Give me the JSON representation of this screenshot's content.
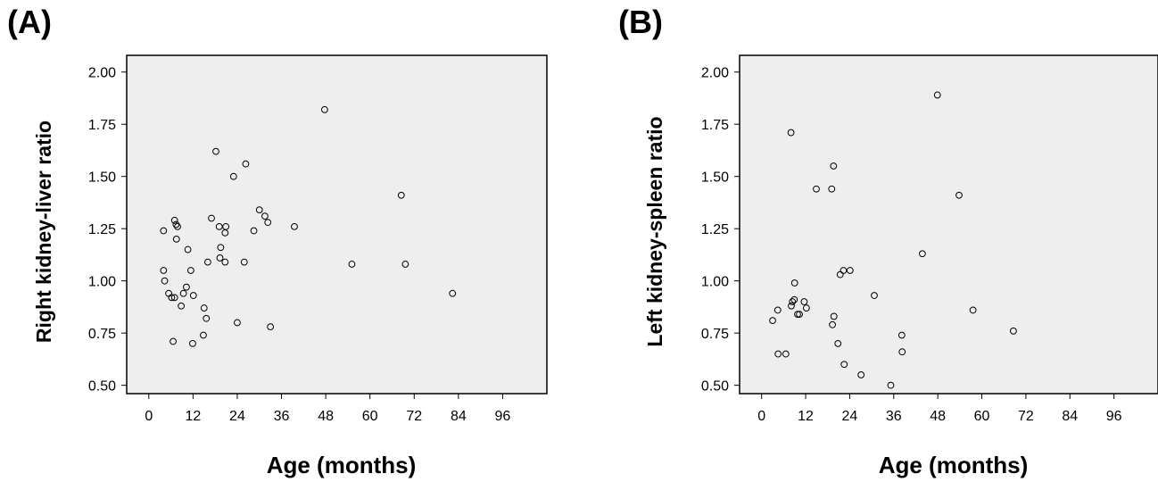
{
  "chart_data": [
    {
      "panel_label": "(A)",
      "type": "scatter",
      "xlabel": "Age (months)",
      "ylabel": "Right kidney-liver ratio",
      "xlim": [
        -6,
        108
      ],
      "ylim": [
        0.46,
        2.08
      ],
      "xticks": [
        0,
        12,
        24,
        36,
        48,
        60,
        72,
        84,
        96
      ],
      "yticks": [
        "0.50",
        "0.75",
        "1.00",
        "1.25",
        "1.50",
        "1.75",
        "2.00"
      ],
      "grid": false,
      "colors": {
        "background": "#eeeeee",
        "marker": "#000000"
      },
      "points": [
        {
          "x": 4,
          "y": 1.24
        },
        {
          "x": 4,
          "y": 1.05
        },
        {
          "x": 4.3,
          "y": 1.0
        },
        {
          "x": 5.4,
          "y": 0.94
        },
        {
          "x": 6.2,
          "y": 0.92
        },
        {
          "x": 6.6,
          "y": 0.71
        },
        {
          "x": 7,
          "y": 0.92
        },
        {
          "x": 7,
          "y": 1.29
        },
        {
          "x": 7.4,
          "y": 1.27
        },
        {
          "x": 7.5,
          "y": 1.2
        },
        {
          "x": 7.8,
          "y": 1.26
        },
        {
          "x": 8.8,
          "y": 0.88
        },
        {
          "x": 9.4,
          "y": 0.94
        },
        {
          "x": 10.2,
          "y": 0.97
        },
        {
          "x": 10.6,
          "y": 1.15
        },
        {
          "x": 11.4,
          "y": 1.05
        },
        {
          "x": 11.9,
          "y": 0.7
        },
        {
          "x": 12.1,
          "y": 0.93
        },
        {
          "x": 14.8,
          "y": 0.74
        },
        {
          "x": 15,
          "y": 0.87
        },
        {
          "x": 15.6,
          "y": 0.82
        },
        {
          "x": 16,
          "y": 1.09
        },
        {
          "x": 17,
          "y": 1.3
        },
        {
          "x": 18.2,
          "y": 1.62
        },
        {
          "x": 19.1,
          "y": 1.26
        },
        {
          "x": 19.3,
          "y": 1.11
        },
        {
          "x": 19.5,
          "y": 1.16
        },
        {
          "x": 20.7,
          "y": 1.09
        },
        {
          "x": 20.7,
          "y": 1.23
        },
        {
          "x": 20.9,
          "y": 1.26
        },
        {
          "x": 23,
          "y": 1.5
        },
        {
          "x": 24,
          "y": 0.8
        },
        {
          "x": 25.9,
          "y": 1.09
        },
        {
          "x": 26.3,
          "y": 1.56
        },
        {
          "x": 28.5,
          "y": 1.24
        },
        {
          "x": 30,
          "y": 1.34
        },
        {
          "x": 31.5,
          "y": 1.31
        },
        {
          "x": 32.3,
          "y": 1.28
        },
        {
          "x": 33,
          "y": 0.78
        },
        {
          "x": 39.5,
          "y": 1.26
        },
        {
          "x": 47.7,
          "y": 1.82
        },
        {
          "x": 55.1,
          "y": 1.08
        },
        {
          "x": 68.5,
          "y": 1.41
        },
        {
          "x": 69.6,
          "y": 1.08
        },
        {
          "x": 82.4,
          "y": 0.94
        }
      ]
    },
    {
      "panel_label": "(B)",
      "type": "scatter",
      "xlabel": "Age (months)",
      "ylabel": "Left kidney-spleen ratio",
      "xlim": [
        -6,
        108
      ],
      "ylim": [
        0.46,
        2.08
      ],
      "xticks": [
        0,
        12,
        24,
        36,
        48,
        60,
        72,
        84,
        96
      ],
      "yticks": [
        "0.50",
        "0.75",
        "1.00",
        "1.25",
        "1.50",
        "1.75",
        "2.00"
      ],
      "grid": false,
      "colors": {
        "background": "#eeeeee",
        "marker": "#000000"
      },
      "points": [
        {
          "x": 3,
          "y": 0.81
        },
        {
          "x": 4.4,
          "y": 0.86
        },
        {
          "x": 4.5,
          "y": 0.65
        },
        {
          "x": 6.6,
          "y": 0.65
        },
        {
          "x": 8,
          "y": 1.71
        },
        {
          "x": 8.1,
          "y": 0.88
        },
        {
          "x": 8.4,
          "y": 0.9
        },
        {
          "x": 8.9,
          "y": 0.91
        },
        {
          "x": 9,
          "y": 0.99
        },
        {
          "x": 9.8,
          "y": 0.84
        },
        {
          "x": 10.3,
          "y": 0.84
        },
        {
          "x": 11.6,
          "y": 0.9
        },
        {
          "x": 12.2,
          "y": 0.87
        },
        {
          "x": 14.9,
          "y": 1.44
        },
        {
          "x": 19.1,
          "y": 1.44
        },
        {
          "x": 19.3,
          "y": 0.79
        },
        {
          "x": 19.6,
          "y": 1.55
        },
        {
          "x": 19.7,
          "y": 0.83
        },
        {
          "x": 20.8,
          "y": 0.7
        },
        {
          "x": 21.4,
          "y": 1.03
        },
        {
          "x": 22.3,
          "y": 1.05
        },
        {
          "x": 22.5,
          "y": 0.6
        },
        {
          "x": 24.1,
          "y": 1.05
        },
        {
          "x": 27.1,
          "y": 0.55
        },
        {
          "x": 30.7,
          "y": 0.93
        },
        {
          "x": 35.2,
          "y": 0.5
        },
        {
          "x": 38.2,
          "y": 0.74
        },
        {
          "x": 38.3,
          "y": 0.66
        },
        {
          "x": 43.8,
          "y": 1.13
        },
        {
          "x": 47.9,
          "y": 1.89
        },
        {
          "x": 53.8,
          "y": 1.41
        },
        {
          "x": 57.6,
          "y": 0.86
        },
        {
          "x": 68.6,
          "y": 0.76
        }
      ]
    }
  ]
}
